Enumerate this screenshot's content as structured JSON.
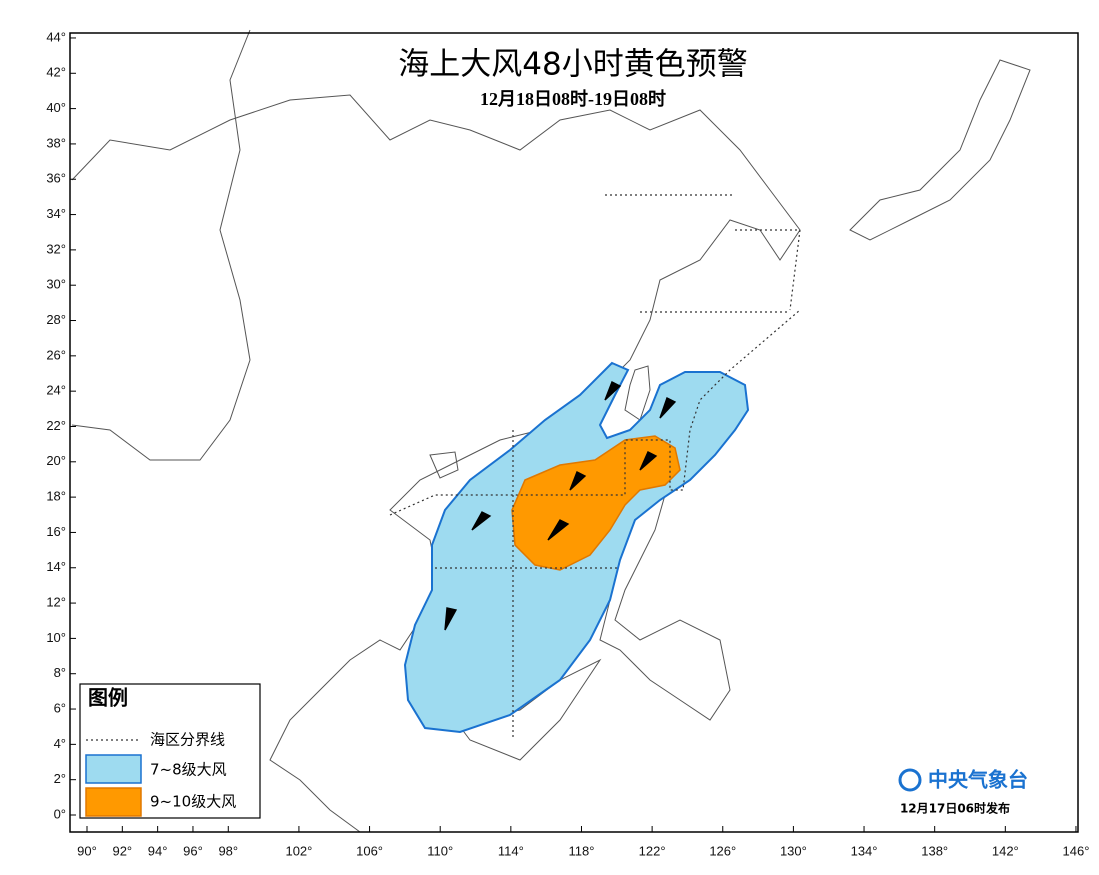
{
  "header": {
    "title": "海上大风48小时黄色预警",
    "subtitle": "12月18日08时-19日08时"
  },
  "lat_ticks": [
    {
      "value": 44,
      "label": "44°"
    },
    {
      "value": 42,
      "label": "42°"
    },
    {
      "value": 40,
      "label": "40°"
    },
    {
      "value": 38,
      "label": "38°"
    },
    {
      "value": 36,
      "label": "36°"
    },
    {
      "value": 34,
      "label": "34°"
    },
    {
      "value": 32,
      "label": "32°"
    },
    {
      "value": 30,
      "label": "30°"
    },
    {
      "value": 28,
      "label": "28°"
    },
    {
      "value": 26,
      "label": "26°"
    },
    {
      "value": 24,
      "label": "24°"
    },
    {
      "value": 22,
      "label": "22°"
    },
    {
      "value": 20,
      "label": "20°"
    },
    {
      "value": 18,
      "label": "18°"
    },
    {
      "value": 16,
      "label": "16°"
    },
    {
      "value": 14,
      "label": "14°"
    },
    {
      "value": 12,
      "label": "12°"
    },
    {
      "value": 10,
      "label": "10°"
    },
    {
      "value": 8,
      "label": "8°"
    },
    {
      "value": 6,
      "label": "6°"
    },
    {
      "value": 4,
      "label": "4°"
    },
    {
      "value": 2,
      "label": "2°"
    },
    {
      "value": 0,
      "label": "0°"
    }
  ],
  "lon_ticks": [
    {
      "value": 90,
      "label": "90°"
    },
    {
      "value": 92,
      "label": "92°"
    },
    {
      "value": 94,
      "label": "94°"
    },
    {
      "value": 96,
      "label": "96°"
    },
    {
      "value": 98,
      "label": "98°"
    },
    {
      "value": 102,
      "label": "102°"
    },
    {
      "value": 106,
      "label": "106°"
    },
    {
      "value": 110,
      "label": "110°"
    },
    {
      "value": 114,
      "label": "114°"
    },
    {
      "value": 118,
      "label": "118°"
    },
    {
      "value": 122,
      "label": "122°"
    },
    {
      "value": 126,
      "label": "126°"
    },
    {
      "value": 130,
      "label": "130°"
    },
    {
      "value": 134,
      "label": "134°"
    },
    {
      "value": 138,
      "label": "138°"
    },
    {
      "value": 142,
      "label": "142°"
    },
    {
      "value": 146,
      "label": "146°"
    }
  ],
  "legend": {
    "title": "图例",
    "items": [
      "海区分界线",
      "7~8级大风",
      "9~10级大风"
    ]
  },
  "issuer": {
    "name": "中央气象台",
    "time": "12月17日06时发布"
  }
}
